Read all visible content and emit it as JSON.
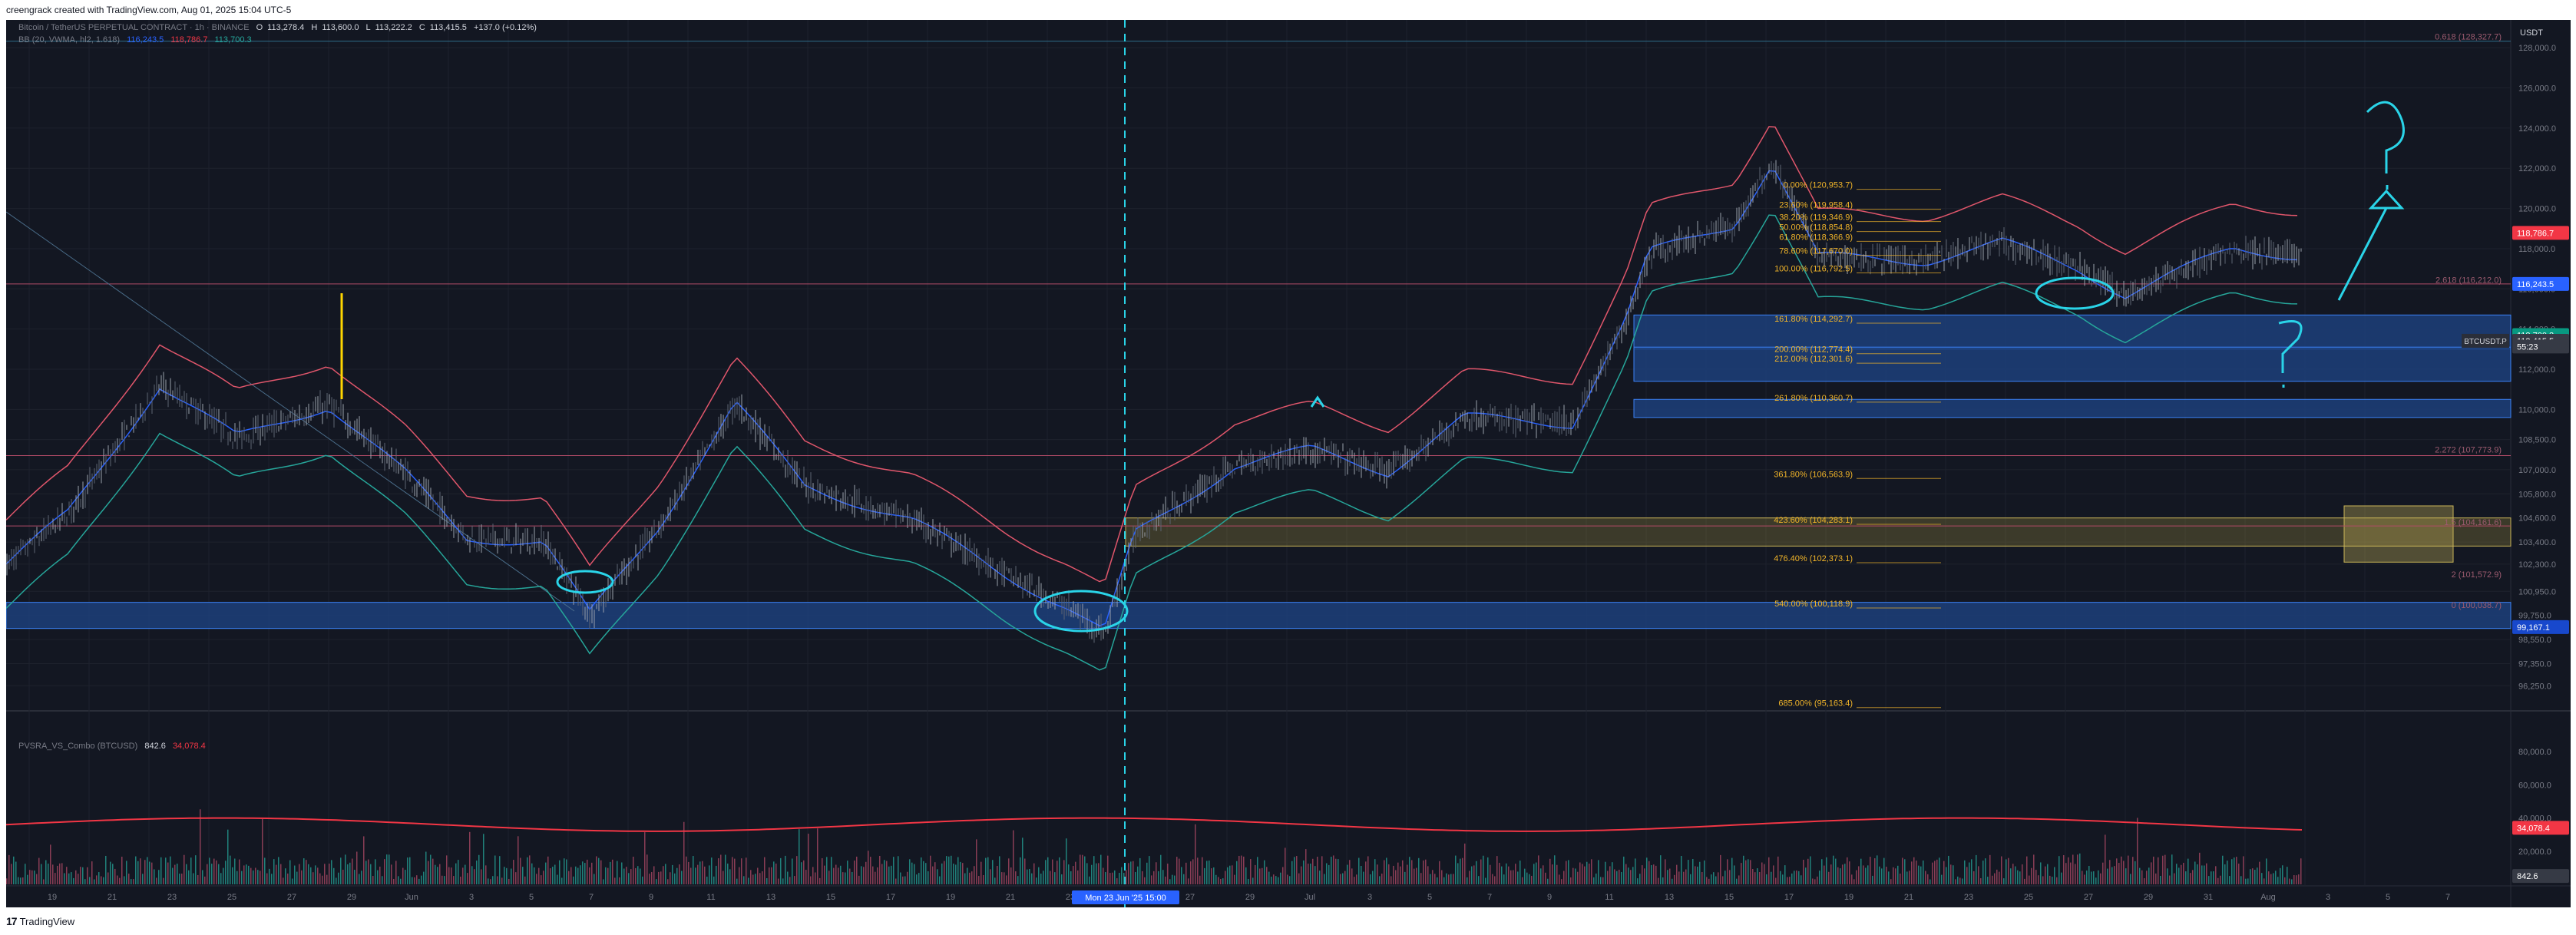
{
  "header": {
    "caption": "creengrack created with TradingView.com, Aug 01, 2025 15:04 UTC-5"
  },
  "footer": {
    "brand": "TradingView",
    "logo_icon": "tradingview-logo-icon"
  },
  "symbol_legend": {
    "title": "Bitcoin / TetherUS PERPETUAL CONTRACT · 1h · BINANCE",
    "o": "113,278.4",
    "h": "113,600.0",
    "l": "113,222.2",
    "c": "113,415.5",
    "chg": "+137.0 (+0.12%)",
    "indicator": "BB (20, VWMA, hl2, 1.618)",
    "bb_upper": "116,243.5",
    "bb_mid": "118,786.7",
    "bb_lower": "113,700.3"
  },
  "volume_legend": {
    "name": "PVSRA_VS_Combo (BTCUSD)",
    "v1": "842.6",
    "v2": "34,078.4"
  },
  "colors": {
    "background": "#131722",
    "grid": "#1e222d",
    "text": "#787b86",
    "up": "#26a69a",
    "down": "#ef5350",
    "bb_upper": "#e0566b",
    "bb_mid": "#2962ff",
    "bb_lower": "#26a69a",
    "zone_blue": "#1d3f7a",
    "fib": "#f0b429",
    "annotation": "#2ad4e8"
  },
  "price_axis": {
    "currency": "USDT",
    "ticks": [
      "128,000.0",
      "126,000.0",
      "124,000.0",
      "122,000.0",
      "120,000.0",
      "118,000.0",
      "116,000.0",
      "114,000.0",
      "112,000.0",
      "110,000.0",
      "108,500.0",
      "107,000.0",
      "105,800.0",
      "104,600.0",
      "103,400.0",
      "102,300.0",
      "100,950.0",
      "99,750.0",
      "98,550.0",
      "97,350.0",
      "96,250.0"
    ],
    "badges": [
      {
        "label": "118,786.7",
        "color": "#f23645",
        "value": 118786.7
      },
      {
        "label": "116,243.5",
        "color": "#2962ff",
        "value": 116243.5
      },
      {
        "label": "113,700.3",
        "color": "#089981",
        "value": 113700.3
      },
      {
        "label": "113,415.5",
        "color": "#363a45",
        "value": 113415.5
      },
      {
        "label": "55:23",
        "color": "#363a45",
        "value": 113130
      },
      {
        "label": "99,167.1",
        "color": "#1848cc",
        "value": 99167.1
      }
    ],
    "symbol_tag": "BTCUSDT.P"
  },
  "volume_axis": {
    "ticks": [
      "80,000.0",
      "60,000.0",
      "40,000.0",
      "20,000.0"
    ],
    "badges": [
      {
        "label": "34,078.4",
        "color": "#f23645"
      },
      {
        "label": "842.6",
        "color": "#363a45"
      }
    ]
  },
  "time_axis": {
    "ticks": [
      "19",
      "21",
      "23",
      "25",
      "27",
      "29",
      "Jun",
      "3",
      "5",
      "7",
      "9",
      "11",
      "13",
      "15",
      "17",
      "19",
      "21",
      "23",
      "25",
      "27",
      "29",
      "Jul",
      "3",
      "5",
      "7",
      "9",
      "11",
      "13",
      "15",
      "17",
      "19",
      "21",
      "23",
      "25",
      "27",
      "29",
      "31",
      "Aug",
      "3",
      "5",
      "7"
    ],
    "crosshair_label": "Mon 23 Jun '25   15:00"
  },
  "fib_retracement": [
    {
      "label": "0.00% (120,953.7)",
      "value": 120953.7
    },
    {
      "label": "23.60% (119,958.4)",
      "value": 119958.4
    },
    {
      "label": "38.20% (119,346.9)",
      "value": 119346.9
    },
    {
      "label": "50.00% (118,854.8)",
      "value": 118854.8
    },
    {
      "label": "61.80% (118,366.9)",
      "value": 118366.9
    },
    {
      "label": "78.60% (117,670.0)",
      "value": 117670.0
    },
    {
      "label": "100.00% (116,792.5)",
      "value": 116792.5
    },
    {
      "label": "161.80% (114,292.7)",
      "value": 114292.7
    },
    {
      "label": "200.00% (112,774.4)",
      "value": 112774.4
    },
    {
      "label": "212.00% (112,301.6)",
      "value": 112301.6
    },
    {
      "label": "261.80% (110,360.7)",
      "value": 110360.7
    },
    {
      "label": "361.80% (106,563.9)",
      "value": 106563.9
    },
    {
      "label": "423.60% (104,283.1)",
      "value": 104283.1
    },
    {
      "label": "476.40% (102,373.1)",
      "value": 102373.1
    },
    {
      "label": "540.00% (100,118.9)",
      "value": 100118.9
    },
    {
      "label": "685.00% (95,163.4)",
      "value": 95163.4
    }
  ],
  "fib_extension": [
    {
      "label": "0.618 (128,327.7)",
      "value": 128327.7
    },
    {
      "label": "2.618 (116,212.0)",
      "value": 116212.0
    },
    {
      "label": "2.272 (107,773.9)",
      "value": 107773.9
    },
    {
      "label": "1.5 (104,161.6)",
      "value": 104161.6
    },
    {
      "label": "2 (101,572.9)",
      "value": 101572.9
    },
    {
      "label": "0 (100,038.7)",
      "value": 100038.7
    }
  ],
  "zones": [
    {
      "name": "upper-demand-zone",
      "from": 113000,
      "to": 114700
    },
    {
      "name": "mid-demand-zone",
      "from": 111400,
      "to": 113100
    },
    {
      "name": "lower-demand-zone",
      "from": 109600,
      "to": 110500
    },
    {
      "name": "june-support-zone",
      "from": 99100,
      "to": 100400
    }
  ]
}
